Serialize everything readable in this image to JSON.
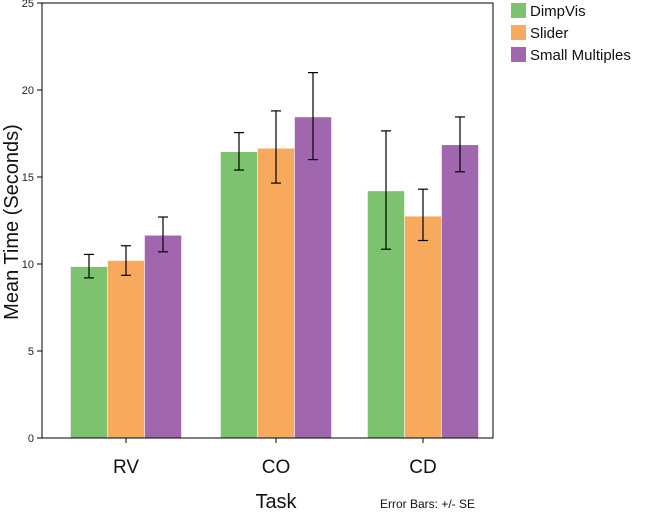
{
  "chart_data": {
    "type": "bar",
    "title": "",
    "xlabel": "Task",
    "ylabel": "Mean Time (Seconds)",
    "categories": [
      "RV",
      "CO",
      "CD"
    ],
    "ylim": [
      0,
      25
    ],
    "yticks": [
      0,
      5,
      10,
      15,
      20,
      25
    ],
    "grid": false,
    "legend_position": "top-right",
    "series": [
      {
        "name": "DimpVis",
        "color": "#7dc36f",
        "values": [
          9.85,
          16.45,
          14.2
        ],
        "error_low": [
          9.2,
          15.4,
          10.85
        ],
        "error_high": [
          10.55,
          17.55,
          17.65
        ]
      },
      {
        "name": "Slider",
        "color": "#f7a95e",
        "values": [
          10.2,
          16.65,
          12.75
        ],
        "error_low": [
          9.35,
          14.65,
          11.35
        ],
        "error_high": [
          11.05,
          18.8,
          14.3
        ]
      },
      {
        "name": "Small Multiples",
        "color": "#a066ae",
        "values": [
          11.65,
          18.45,
          16.85
        ],
        "error_low": [
          10.7,
          16.0,
          15.3
        ],
        "error_high": [
          12.7,
          21.0,
          18.45
        ]
      }
    ],
    "error_bar_note": "Error Bars: +/- SE"
  }
}
